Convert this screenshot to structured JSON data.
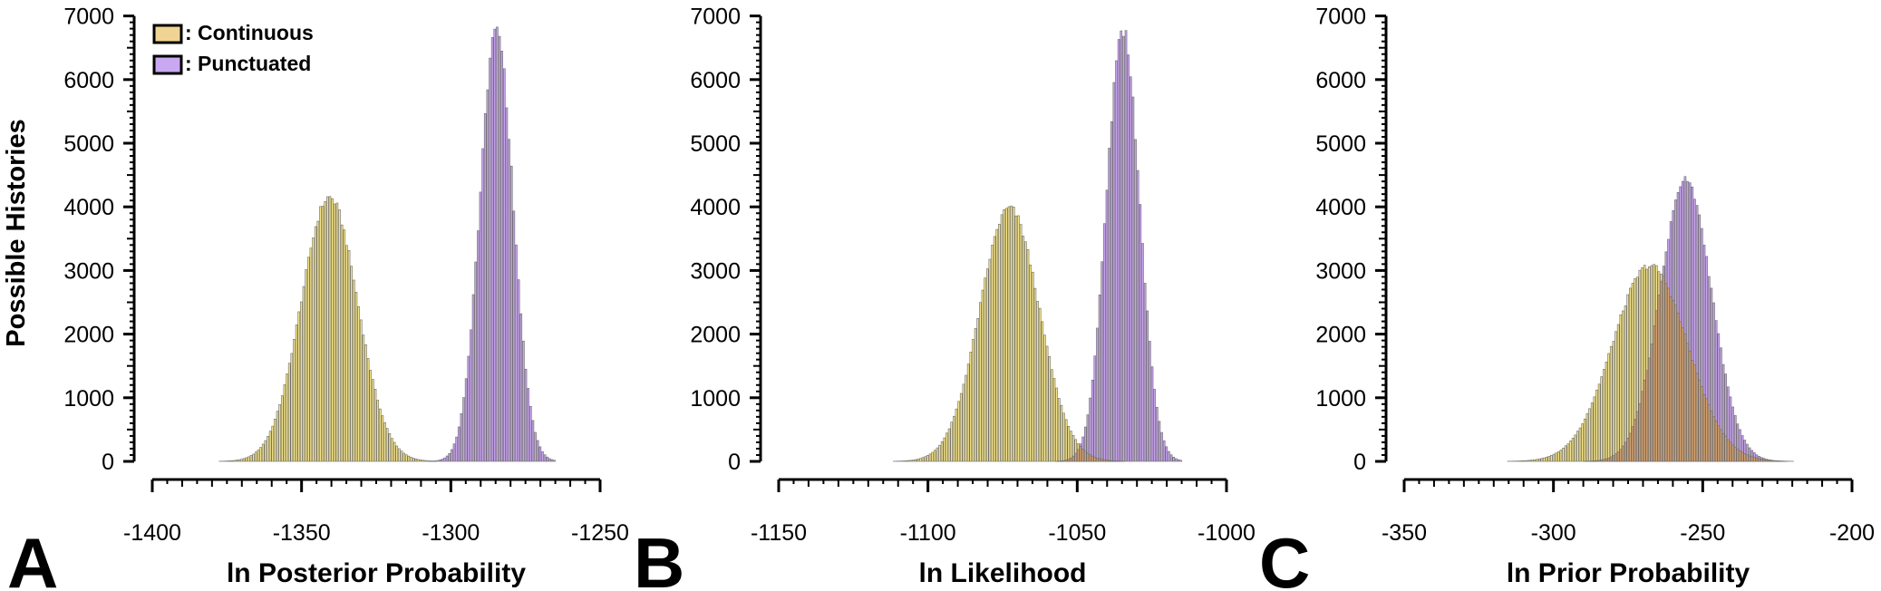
{
  "figure": {
    "ylabel": "Possible Histories",
    "legend": [
      {
        "label": ": Continuous",
        "color": "#f0d494"
      },
      {
        "label": ": Punctuated",
        "color": "#c9a8f2"
      }
    ],
    "colors": {
      "continuous": "#f7e584",
      "punctuated": "#c8a2f0",
      "overlap": "#d9a26c",
      "bar_edge": "#6b6b6b"
    }
  },
  "chart_data": [
    {
      "panel": "A",
      "type": "bar",
      "title": "",
      "xlabel": "ln Posterior Probability",
      "ylabel": "Possible Histories",
      "xlim": [
        -1400,
        -1250
      ],
      "ylim": [
        0,
        7000
      ],
      "xticks": [
        -1400,
        -1350,
        -1300,
        -1250
      ],
      "yticks": [
        0,
        1000,
        2000,
        3000,
        4000,
        5000,
        6000,
        7000
      ],
      "legend_position": "upper left",
      "grid": false,
      "series": [
        {
          "name": "Continuous",
          "distribution": "approx. normal",
          "peak_x": -1341,
          "peak_y": 4150,
          "sd": 9.5,
          "range": [
            -1388,
            -1305
          ]
        },
        {
          "name": "Punctuated",
          "distribution": "approx. normal",
          "peak_x": -1285,
          "peak_y": 6800,
          "sd": 5.6,
          "range": [
            -1315,
            -1265
          ]
        }
      ]
    },
    {
      "panel": "B",
      "type": "bar",
      "title": "",
      "xlabel": "ln Likelihood",
      "ylabel": "Possible Histories",
      "xlim": [
        -1150,
        -1000
      ],
      "ylim": [
        0,
        7000
      ],
      "xticks": [
        -1150,
        -1100,
        -1050,
        -1000
      ],
      "yticks": [
        0,
        1000,
        2000,
        3000,
        4000,
        5000,
        6000,
        7000
      ],
      "grid": false,
      "series": [
        {
          "name": "Continuous",
          "distribution": "approx. normal",
          "peak_x": -1073,
          "peak_y": 3980,
          "sd": 10,
          "range": [
            -1130,
            -1030
          ]
        },
        {
          "name": "Punctuated",
          "distribution": "approx. normal",
          "peak_x": -1035,
          "peak_y": 6800,
          "sd": 5.6,
          "range": [
            -1065,
            -1015
          ]
        }
      ]
    },
    {
      "panel": "C",
      "type": "bar",
      "title": "",
      "xlabel": "ln Prior Probability",
      "ylabel": "Possible Histories",
      "xlim": [
        -350,
        -200
      ],
      "ylim": [
        0,
        7000
      ],
      "xticks": [
        -350,
        -300,
        -250,
        -200
      ],
      "yticks": [
        0,
        1000,
        2000,
        3000,
        4000,
        5000,
        6000,
        7000
      ],
      "grid": false,
      "series": [
        {
          "name": "Continuous",
          "distribution": "approx. normal",
          "peak_x": -268,
          "peak_y": 3080,
          "sd": 12.5,
          "range": [
            -325,
            -215
          ]
        },
        {
          "name": "Punctuated",
          "distribution": "approx. normal",
          "peak_x": -256,
          "peak_y": 4420,
          "sd": 8.7,
          "range": [
            -300,
            -215
          ]
        }
      ]
    }
  ]
}
